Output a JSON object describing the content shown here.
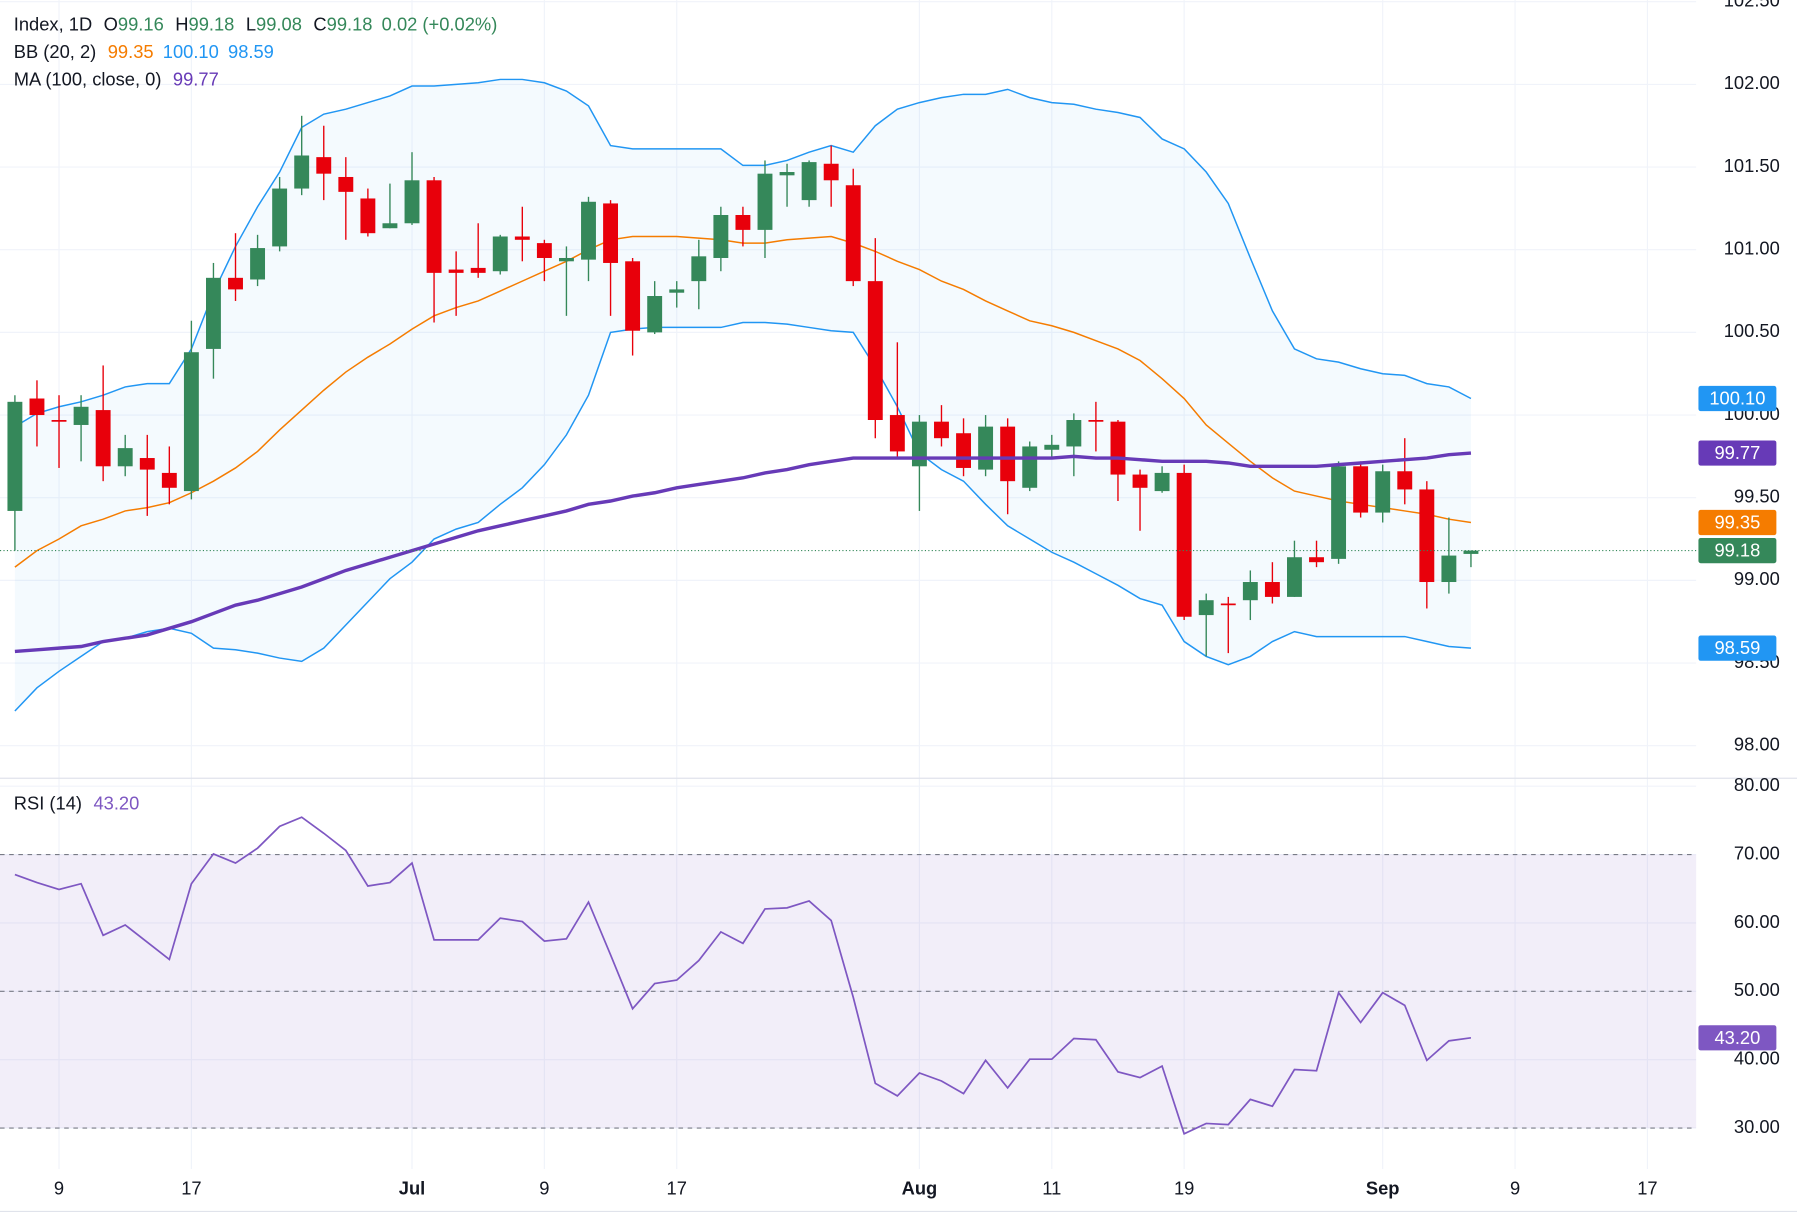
{
  "chart_data": {
    "type": "candlestick",
    "header": {
      "symbol": "Index, 1D",
      "ohlc": [
        {
          "key": "O",
          "value": "99.16"
        },
        {
          "key": "H",
          "value": "99.18"
        },
        {
          "key": "L",
          "value": "99.08"
        },
        {
          "key": "C",
          "value": "99.18"
        }
      ],
      "change": "0.02 (+0.02%)"
    },
    "categories": [
      null,
      null,
      "9",
      null,
      null,
      null,
      null,
      null,
      "17",
      null,
      null,
      null,
      null,
      null,
      null,
      null,
      null,
      null,
      "Jul",
      null,
      null,
      null,
      null,
      null,
      "9",
      null,
      null,
      null,
      null,
      null,
      "17",
      null,
      null,
      null,
      null,
      null,
      null,
      null,
      null,
      null,
      null,
      "Aug",
      null,
      null,
      null,
      null,
      null,
      "11",
      null,
      null,
      null,
      null,
      null,
      "19",
      null,
      null,
      null,
      null,
      null,
      null,
      null,
      null,
      "Sep",
      null,
      null,
      null,
      null,
      null,
      "9",
      null,
      null,
      null,
      null,
      null,
      "17"
    ],
    "up_color": "#35885a",
    "down_color": "#e8000b",
    "open": [
      99.42,
      100.1,
      99.97,
      99.94,
      100.03,
      99.69,
      99.74,
      99.65,
      99.54,
      100.4,
      100.83,
      100.82,
      101.02,
      101.37,
      101.56,
      101.44,
      101.31,
      101.13,
      101.16,
      101.42,
      100.88,
      100.89,
      100.87,
      101.08,
      101.04,
      100.93,
      100.94,
      101.28,
      100.93,
      100.5,
      100.74,
      100.81,
      100.95,
      101.21,
      101.12,
      101.45,
      101.3,
      101.52,
      101.39,
      100.81,
      100.0,
      99.69,
      99.96,
      99.89,
      99.67,
      99.93,
      99.56,
      99.79,
      99.81,
      99.97,
      99.96,
      99.64,
      99.54,
      99.65,
      98.79,
      98.86,
      98.88,
      98.99,
      98.9,
      99.14,
      99.13,
      99.69,
      99.41,
      99.66,
      99.55,
      98.99,
      99.16,
      null,
      null,
      null,
      null,
      null,
      null,
      null,
      null
    ],
    "high": [
      100.12,
      100.21,
      100.12,
      100.12,
      100.3,
      99.88,
      99.88,
      99.81,
      100.57,
      100.92,
      101.1,
      101.09,
      101.44,
      101.81,
      101.75,
      101.56,
      101.37,
      101.4,
      101.59,
      101.44,
      100.99,
      101.16,
      101.09,
      101.26,
      101.06,
      101.02,
      101.32,
      101.3,
      100.95,
      100.81,
      100.81,
      101.06,
      101.26,
      101.26,
      101.54,
      101.52,
      101.54,
      101.63,
      101.49,
      101.07,
      100.44,
      100.0,
      100.06,
      99.98,
      100.0,
      99.98,
      99.84,
      99.88,
      100.01,
      100.08,
      99.97,
      99.67,
      99.69,
      99.7,
      98.92,
      98.9,
      99.06,
      99.11,
      99.24,
      99.24,
      99.72,
      99.72,
      99.7,
      99.86,
      99.6,
      99.38,
      99.18,
      null,
      null,
      null,
      null,
      null,
      null,
      null,
      null
    ],
    "low": [
      99.18,
      99.81,
      99.68,
      99.72,
      99.6,
      99.63,
      99.39,
      99.46,
      99.49,
      100.22,
      100.69,
      100.78,
      100.99,
      101.33,
      101.3,
      101.06,
      101.08,
      101.13,
      101.15,
      100.56,
      100.6,
      100.83,
      100.85,
      100.93,
      100.81,
      100.6,
      100.81,
      100.6,
      100.36,
      100.49,
      100.65,
      100.64,
      100.87,
      101.02,
      100.95,
      101.26,
      101.26,
      101.26,
      100.78,
      99.86,
      99.74,
      99.42,
      99.81,
      99.63,
      99.63,
      99.4,
      99.54,
      99.74,
      99.63,
      99.78,
      99.48,
      99.3,
      99.53,
      98.76,
      98.54,
      98.56,
      98.76,
      98.86,
      98.9,
      99.08,
      99.1,
      99.38,
      99.35,
      99.46,
      98.83,
      98.92,
      99.08,
      null,
      null,
      null,
      null,
      null,
      null,
      null,
      null
    ],
    "close": [
      100.08,
      100.0,
      99.96,
      100.05,
      99.69,
      99.8,
      99.67,
      99.56,
      100.38,
      100.83,
      100.76,
      101.01,
      101.37,
      101.57,
      101.46,
      101.35,
      101.1,
      101.16,
      101.42,
      100.86,
      100.86,
      100.86,
      101.08,
      101.06,
      100.95,
      100.95,
      101.29,
      100.92,
      100.51,
      100.72,
      100.76,
      100.96,
      101.21,
      101.12,
      101.46,
      101.47,
      101.53,
      101.42,
      100.81,
      99.97,
      99.78,
      99.96,
      99.86,
      99.68,
      99.93,
      99.6,
      99.81,
      99.82,
      99.97,
      99.96,
      99.64,
      99.56,
      99.65,
      98.78,
      98.88,
      98.85,
      98.99,
      98.9,
      99.14,
      99.11,
      99.69,
      99.41,
      99.66,
      99.55,
      98.99,
      99.15,
      99.18,
      null,
      null,
      null,
      null,
      null,
      null,
      null,
      null
    ],
    "ylim": [
      97.81,
      102.51
    ],
    "yticks": [
      {
        "value": 98,
        "label": "98.00"
      },
      {
        "value": 98.5,
        "label": "98.50"
      },
      {
        "value": 99,
        "label": "99.00"
      },
      {
        "value": 99.5,
        "label": "99.50"
      },
      {
        "value": 100,
        "label": "100.00"
      },
      {
        "value": 100.5,
        "label": "100.50"
      },
      {
        "value": 101,
        "label": "101.00"
      },
      {
        "value": 101.5,
        "label": "101.50"
      },
      {
        "value": 102,
        "label": "102.00"
      },
      {
        "value": 102.5,
        "label": "102.50"
      }
    ],
    "grid": true,
    "bb": {
      "label": "BB (20, 2)",
      "fill": "#2196f3",
      "basis": {
        "color": "#f57c00",
        "last_label": "99.35",
        "values": [
          99.08,
          99.18,
          99.25,
          99.33,
          99.37,
          99.42,
          99.44,
          99.47,
          99.53,
          99.6,
          99.68,
          99.78,
          99.91,
          100.03,
          100.15,
          100.26,
          100.35,
          100.43,
          100.52,
          100.6,
          100.65,
          100.69,
          100.75,
          100.81,
          100.87,
          100.93,
          101.0,
          101.06,
          101.08,
          101.08,
          101.08,
          101.07,
          101.06,
          101.04,
          101.04,
          101.06,
          101.07,
          101.08,
          101.04,
          100.99,
          100.93,
          100.88,
          100.81,
          100.76,
          100.69,
          100.63,
          100.57,
          100.54,
          100.5,
          100.45,
          100.4,
          100.33,
          100.22,
          100.1,
          99.94,
          99.83,
          99.72,
          99.62,
          99.54,
          99.51,
          99.48,
          99.46,
          99.44,
          99.42,
          99.4,
          99.37,
          99.35,
          null,
          null,
          null,
          null,
          null,
          null,
          null,
          null
        ]
      },
      "upper": {
        "color": "#2196f3",
        "last_label": "100.10",
        "values": [
          99.93,
          100.01,
          100.05,
          100.08,
          100.12,
          100.17,
          100.19,
          100.19,
          100.4,
          100.74,
          101.02,
          101.26,
          101.47,
          101.74,
          101.82,
          101.85,
          101.89,
          101.93,
          101.99,
          101.99,
          102.0,
          102.01,
          102.03,
          102.03,
          102.01,
          101.96,
          101.87,
          101.63,
          101.61,
          101.61,
          101.61,
          101.61,
          101.61,
          101.51,
          101.51,
          101.54,
          101.59,
          101.63,
          101.59,
          101.75,
          101.85,
          101.89,
          101.92,
          101.94,
          101.94,
          101.97,
          101.92,
          101.89,
          101.88,
          101.85,
          101.83,
          101.8,
          101.67,
          101.61,
          101.47,
          101.28,
          100.95,
          100.63,
          100.4,
          100.34,
          100.32,
          100.28,
          100.25,
          100.24,
          100.19,
          100.17,
          100.1,
          null,
          null,
          null,
          null,
          null,
          null,
          null,
          null
        ]
      },
      "lower": {
        "color": "#2196f3",
        "last_label": "98.59",
        "values": [
          98.21,
          98.35,
          98.45,
          98.54,
          98.63,
          98.65,
          98.69,
          98.71,
          98.68,
          98.59,
          98.58,
          98.56,
          98.53,
          98.51,
          98.59,
          98.73,
          98.87,
          99.01,
          99.11,
          99.25,
          99.31,
          99.35,
          99.46,
          99.56,
          99.7,
          99.88,
          100.12,
          100.5,
          100.52,
          100.53,
          100.53,
          100.53,
          100.53,
          100.56,
          100.56,
          100.55,
          100.53,
          100.51,
          100.5,
          100.29,
          100.05,
          99.77,
          99.67,
          99.6,
          99.46,
          99.33,
          99.25,
          99.17,
          99.11,
          99.04,
          98.97,
          98.89,
          98.85,
          98.63,
          98.54,
          98.49,
          98.54,
          98.63,
          98.69,
          98.66,
          98.66,
          98.66,
          98.66,
          98.66,
          98.63,
          98.6,
          98.59,
          null,
          null,
          null,
          null,
          null,
          null,
          null,
          null
        ]
      }
    },
    "ma": {
      "label": "MA (100, close, 0)",
      "color": "#673ab7",
      "last_label": "99.77",
      "values": [
        98.57,
        98.58,
        98.59,
        98.6,
        98.63,
        98.65,
        98.67,
        98.71,
        98.75,
        98.8,
        98.85,
        98.88,
        98.92,
        98.96,
        99.01,
        99.06,
        99.1,
        99.14,
        99.18,
        99.22,
        99.26,
        99.3,
        99.33,
        99.36,
        99.39,
        99.42,
        99.46,
        99.48,
        99.51,
        99.53,
        99.56,
        99.58,
        99.6,
        99.62,
        99.65,
        99.67,
        99.7,
        99.72,
        99.74,
        99.74,
        99.74,
        99.74,
        99.74,
        99.74,
        99.74,
        99.74,
        99.74,
        99.74,
        99.75,
        99.74,
        99.74,
        99.73,
        99.72,
        99.72,
        99.72,
        99.71,
        99.69,
        99.69,
        99.69,
        99.69,
        99.7,
        99.71,
        99.72,
        99.73,
        99.74,
        99.76,
        99.77,
        null,
        null,
        null,
        null,
        null,
        null,
        null,
        null
      ]
    },
    "rsi": {
      "label": "RSI (14)",
      "color": "#7e57c2",
      "last_label": "43.20",
      "ylim": [
        24,
        81
      ],
      "yticks": [
        {
          "value": 30,
          "label": "30.00"
        },
        {
          "value": 40,
          "label": "40.00"
        },
        {
          "value": 50,
          "label": "50.00"
        },
        {
          "value": 60,
          "label": "60.00"
        },
        {
          "value": 70,
          "label": "70.00"
        },
        {
          "value": 80,
          "label": "80.00"
        }
      ],
      "levels": [
        30,
        50,
        70
      ],
      "values": [
        67.08,
        65.91,
        64.9,
        65.74,
        58.19,
        59.7,
        57.18,
        54.66,
        65.74,
        70.1,
        68.76,
        70.94,
        74.13,
        75.47,
        73.12,
        70.6,
        65.4,
        65.91,
        68.76,
        57.52,
        57.52,
        57.52,
        60.7,
        60.2,
        57.35,
        57.68,
        63.05,
        55.34,
        47.45,
        51.14,
        51.64,
        54.5,
        58.69,
        57.01,
        62.05,
        62.21,
        63.22,
        60.37,
        49.13,
        36.54,
        34.7,
        38.05,
        36.88,
        35.03,
        39.9,
        35.87,
        40.07,
        40.07,
        43.09,
        42.92,
        38.22,
        37.38,
        39.06,
        29.16,
        30.67,
        30.5,
        34.19,
        33.19,
        38.56,
        38.39,
        49.8,
        45.44,
        49.8,
        47.95,
        39.9,
        42.75,
        43.2,
        null,
        null,
        null,
        null,
        null,
        null,
        null,
        null
      ]
    }
  }
}
